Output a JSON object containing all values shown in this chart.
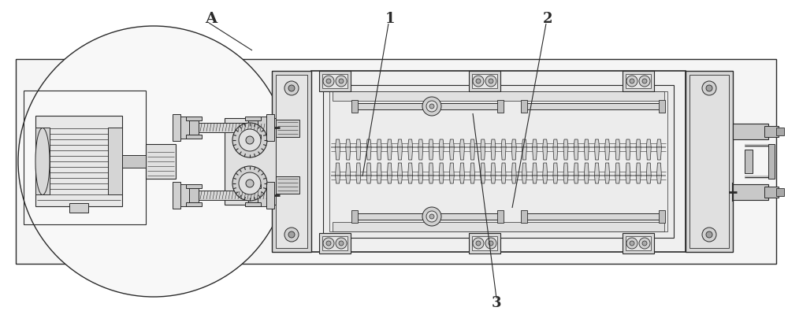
{
  "bg_color": "#ffffff",
  "lc": "#2a2a2a",
  "fc_light": "#f0f0f0",
  "fc_mid": "#d8d8d8",
  "fc_dark": "#b8b8b8",
  "label_A": "A",
  "label_1": "1",
  "label_2": "2",
  "label_3": "3",
  "fig_width": 10.0,
  "fig_height": 4.09,
  "dpi": 100
}
